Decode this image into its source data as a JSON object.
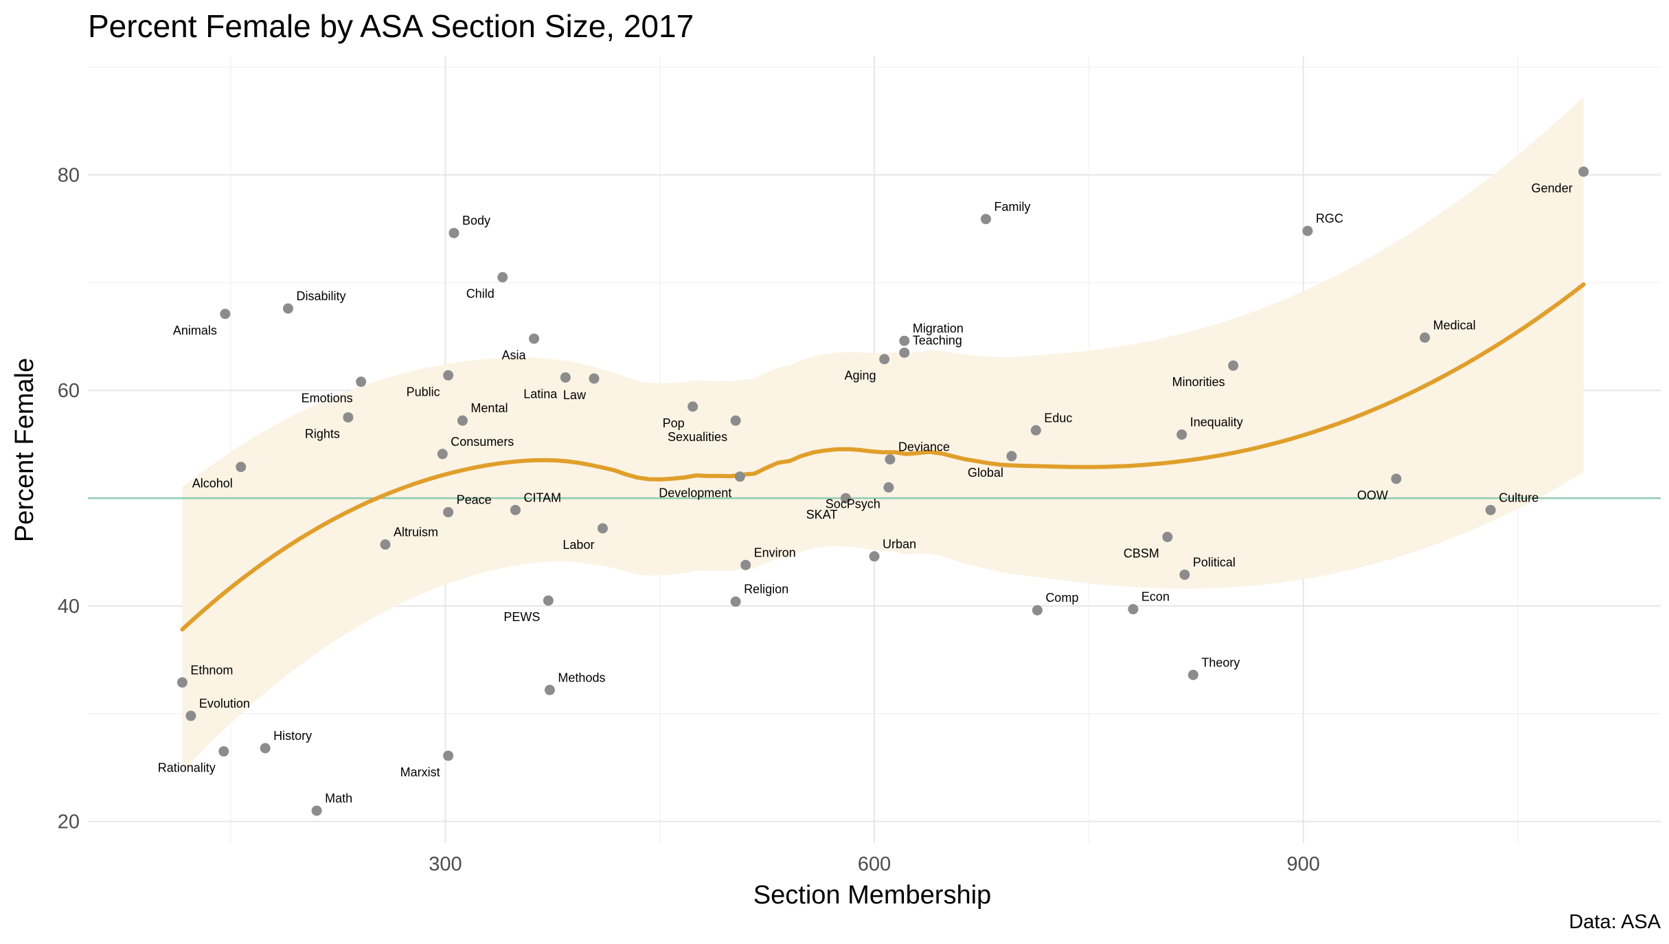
{
  "chart_data": {
    "type": "scatter",
    "title": "Percent Female by ASA Section Size, 2017",
    "xlabel": "Section Membership",
    "ylabel": "Percent Female",
    "caption": "Data: ASA",
    "xlim": [
      50,
      1150
    ],
    "ylim": [
      18,
      91
    ],
    "x_ticks": [
      300,
      600,
      900
    ],
    "y_ticks": [
      20,
      40,
      60,
      80
    ],
    "grid": true,
    "reference_line": {
      "y": 50,
      "color": "#8fcbb1"
    },
    "smooth_color": "#e09f2b",
    "band_color": "#fbf3e4",
    "point_color": "#8c8c8c",
    "points": [
      {
        "label": "Gender",
        "x": 1096,
        "y": 80.3
      },
      {
        "label": "Family",
        "x": 678,
        "y": 75.9
      },
      {
        "label": "RGC",
        "x": 903,
        "y": 74.8
      },
      {
        "label": "Body",
        "x": 306,
        "y": 74.6
      },
      {
        "label": "Child",
        "x": 340,
        "y": 70.5
      },
      {
        "label": "Disability",
        "x": 190,
        "y": 67.6
      },
      {
        "label": "Animals",
        "x": 146,
        "y": 67.1
      },
      {
        "label": "Medical",
        "x": 985,
        "y": 64.9
      },
      {
        "label": "Asia",
        "x": 362,
        "y": 64.8
      },
      {
        "label": "Migration",
        "x": 621,
        "y": 64.6
      },
      {
        "label": "Teaching",
        "x": 621,
        "y": 63.5
      },
      {
        "label": "Aging",
        "x": 607,
        "y": 62.9
      },
      {
        "label": "Minorities",
        "x": 851,
        "y": 62.3
      },
      {
        "label": "Public",
        "x": 302,
        "y": 61.4
      },
      {
        "label": "Latina",
        "x": 384,
        "y": 61.2
      },
      {
        "label": "Law",
        "x": 404,
        "y": 61.1
      },
      {
        "label": "Emotions",
        "x": 241,
        "y": 60.8
      },
      {
        "label": "Pop",
        "x": 473,
        "y": 58.5
      },
      {
        "label": "Rights",
        "x": 232,
        "y": 57.5
      },
      {
        "label": "Sexualities",
        "x": 503,
        "y": 57.2
      },
      {
        "label": "Mental",
        "x": 312,
        "y": 57.2
      },
      {
        "label": "Educ",
        "x": 713,
        "y": 56.3
      },
      {
        "label": "Inequality",
        "x": 815,
        "y": 55.9
      },
      {
        "label": "Consumers",
        "x": 298,
        "y": 54.1
      },
      {
        "label": "Global",
        "x": 696,
        "y": 53.9
      },
      {
        "label": "Deviance",
        "x": 611,
        "y": 53.6
      },
      {
        "label": "Alcohol",
        "x": 157,
        "y": 52.9
      },
      {
        "label": "Development",
        "x": 506,
        "y": 52.0
      },
      {
        "label": "OOW",
        "x": 965,
        "y": 51.8
      },
      {
        "label": "SocPsych",
        "x": 610,
        "y": 51.0
      },
      {
        "label": "SKAT",
        "x": 580,
        "y": 50.0
      },
      {
        "label": "CITAM",
        "x": 349,
        "y": 48.9
      },
      {
        "label": "Culture",
        "x": 1031,
        "y": 48.9
      },
      {
        "label": "Peace",
        "x": 302,
        "y": 48.7
      },
      {
        "label": "Labor",
        "x": 410,
        "y": 47.2
      },
      {
        "label": "CBSM",
        "x": 805,
        "y": 46.4
      },
      {
        "label": "Altruism",
        "x": 258,
        "y": 45.7
      },
      {
        "label": "Urban",
        "x": 600,
        "y": 44.6
      },
      {
        "label": "Environ",
        "x": 510,
        "y": 43.8
      },
      {
        "label": "Political",
        "x": 817,
        "y": 42.9
      },
      {
        "label": "PEWS",
        "x": 372,
        "y": 40.5
      },
      {
        "label": "Religion",
        "x": 503,
        "y": 40.4
      },
      {
        "label": "Econ",
        "x": 781,
        "y": 39.7
      },
      {
        "label": "Comp",
        "x": 714,
        "y": 39.6
      },
      {
        "label": "Theory",
        "x": 823,
        "y": 33.6
      },
      {
        "label": "Ethnom",
        "x": 116,
        "y": 32.9
      },
      {
        "label": "Methods",
        "x": 373,
        "y": 32.2
      },
      {
        "label": "Evolution",
        "x": 122,
        "y": 29.8
      },
      {
        "label": "History",
        "x": 174,
        "y": 26.8
      },
      {
        "label": "Rationality",
        "x": 145,
        "y": 26.5
      },
      {
        "label": "Marxist",
        "x": 302,
        "y": 26.1
      },
      {
        "label": "Math",
        "x": 210,
        "y": 21.0
      }
    ]
  }
}
